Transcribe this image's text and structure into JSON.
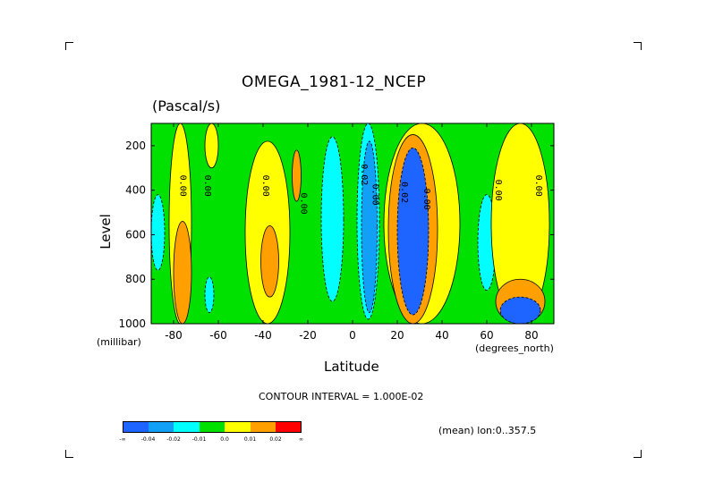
{
  "chart_data": {
    "type": "heatmap",
    "title": "OMEGA_1981-12_NCEP",
    "subtitle": "(Pascal/s)",
    "xlabel": "Latitude",
    "ylabel": "Level",
    "x_unit": "(degrees_north)",
    "y_unit": "(millibar)",
    "xlim": [
      -90,
      90
    ],
    "ylim": [
      1000,
      100
    ],
    "x_ticks": [
      "-80",
      "-60",
      "-40",
      "-20",
      "0",
      "20",
      "40",
      "60",
      "80"
    ],
    "y_ticks": [
      "200",
      "400",
      "600",
      "800",
      "1000"
    ],
    "contour_interval": "CONTOUR INTERVAL = 1.000E-02",
    "footnote": "(mean) lon:0..357.5",
    "contour_labels": [
      "0.00",
      "0.00",
      "0.00",
      "0.00",
      "0.02",
      "0.00",
      "0.02",
      "0.00",
      "0.00",
      "0.00"
    ],
    "colorbar": {
      "bins": [
        {
          "color": "#1e64ff",
          "level": "-0.04"
        },
        {
          "color": "#11a0f5",
          "level": "-0.02"
        },
        {
          "color": "#00ffff",
          "level": "-0.01"
        },
        {
          "color": "#00e100",
          "level": "0.0"
        },
        {
          "color": "#ffff00",
          "level": "0.01"
        },
        {
          "color": "#ffa000",
          "level": "0.02"
        },
        {
          "color": "#ff0000",
          "level": ""
        }
      ],
      "tick_labels": [
        "-∞",
        "-0.04",
        "-0.02",
        "-0.01",
        "0.0",
        "0.01",
        "0.02",
        "∞"
      ]
    },
    "regions": [
      {
        "band": "0.0",
        "lat": [
          -90,
          90
        ],
        "lev": [
          100,
          1000
        ]
      },
      {
        "band": "-0.01",
        "lat": [
          -90,
          -84
        ],
        "lev": [
          420,
          760
        ]
      },
      {
        "band": "0.01",
        "lat": [
          -82,
          -72
        ],
        "lev": [
          100,
          1000
        ]
      },
      {
        "band": "0.02",
        "lat": [
          -80,
          -72
        ],
        "lev": [
          540,
          1000
        ]
      },
      {
        "band": "0.01",
        "lat": [
          -66,
          -60
        ],
        "lev": [
          100,
          300
        ]
      },
      {
        "band": "-0.01",
        "lat": [
          -66,
          -62
        ],
        "lev": [
          790,
          950
        ]
      },
      {
        "band": "0.01",
        "lat": [
          -48,
          -28
        ],
        "lev": [
          180,
          1000
        ]
      },
      {
        "band": "0.02",
        "lat": [
          -41,
          -33
        ],
        "lev": [
          560,
          880
        ]
      },
      {
        "band": "0.02",
        "lat": [
          -27,
          -23
        ],
        "lev": [
          220,
          450
        ]
      },
      {
        "band": "-0.01",
        "lat": [
          -14,
          -4
        ],
        "lev": [
          160,
          900
        ]
      },
      {
        "band": "-0.01",
        "lat": [
          2,
          12
        ],
        "lev": [
          100,
          980
        ]
      },
      {
        "band": "-0.02",
        "lat": [
          4,
          11
        ],
        "lev": [
          180,
          950
        ]
      },
      {
        "band": "0.01",
        "lat": [
          14,
          48
        ],
        "lev": [
          100,
          1000
        ]
      },
      {
        "band": "0.02",
        "lat": [
          16,
          38
        ],
        "lev": [
          150,
          1000
        ]
      },
      {
        "band": "-0.04",
        "lat": [
          20,
          34
        ],
        "lev": [
          210,
          960
        ]
      },
      {
        "band": "-0.01",
        "lat": [
          56,
          64
        ],
        "lev": [
          420,
          850
        ]
      },
      {
        "band": "0.01",
        "lat": [
          62,
          88
        ],
        "lev": [
          100,
          1000
        ]
      },
      {
        "band": "0.02",
        "lat": [
          64,
          86
        ],
        "lev": [
          800,
          1000
        ]
      },
      {
        "band": "-0.04",
        "lat": [
          66,
          84
        ],
        "lev": [
          880,
          1000
        ]
      }
    ]
  }
}
